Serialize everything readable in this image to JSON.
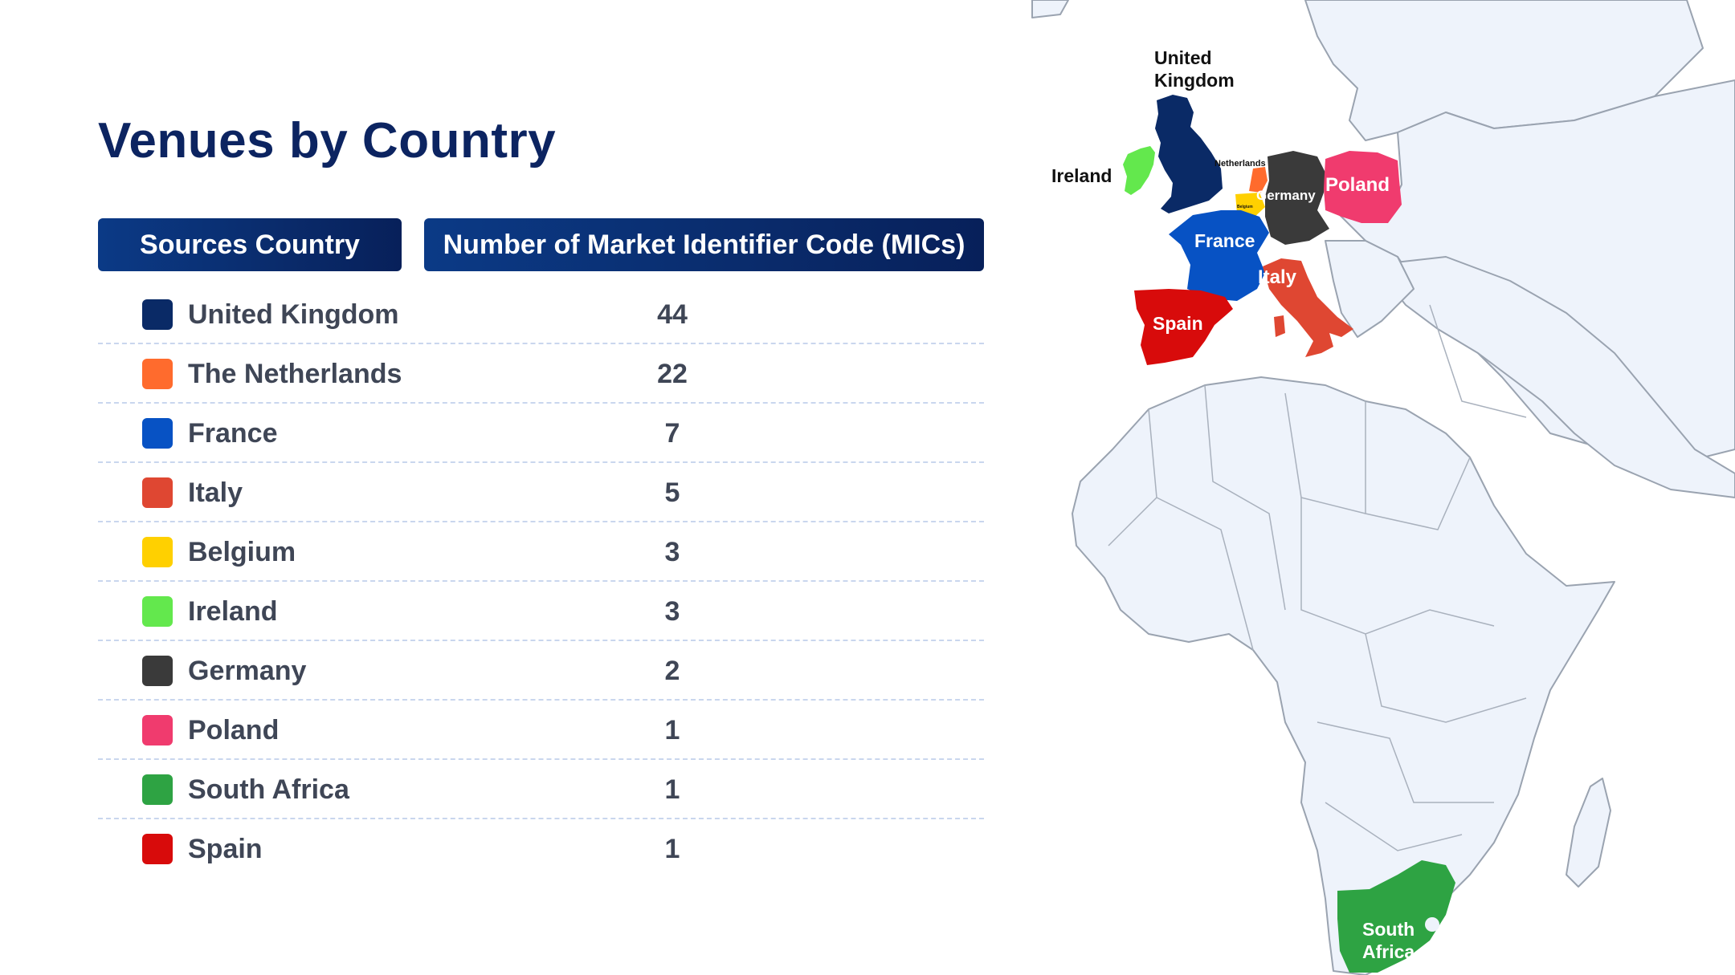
{
  "title": "Venues by Country",
  "table": {
    "headers": {
      "country": "Sources Country",
      "count": "Number of Market Identifier Code (MICs)"
    },
    "rows": [
      {
        "country": "United Kingdom",
        "count": "44",
        "color": "#0a2a66"
      },
      {
        "country": "The Netherlands",
        "count": "22",
        "color": "#ff6b2d"
      },
      {
        "country": "France",
        "count": "7",
        "color": "#0752c4"
      },
      {
        "country": "Italy",
        "count": "5",
        "color": "#df4732"
      },
      {
        "country": "Belgium",
        "count": "3",
        "color": "#ffd000"
      },
      {
        "country": "Ireland",
        "count": "3",
        "color": "#63e84d"
      },
      {
        "country": "Germany",
        "count": "2",
        "color": "#3a3a3a"
      },
      {
        "country": "Poland",
        "count": "1",
        "color": "#f03b6e"
      },
      {
        "country": "South Africa",
        "count": "1",
        "color": "#2ea343"
      },
      {
        "country": "Spain",
        "count": "1",
        "color": "#d80b0b"
      }
    ]
  },
  "map": {
    "labels": {
      "uk": "United Kingdom",
      "ireland": "Ireland",
      "netherlands": "Netherlands",
      "germany": "Germany",
      "poland": "Poland",
      "france": "France",
      "italy": "Italy",
      "spain": "Spain",
      "south_africa": "South Africa",
      "belgium": "Belgium"
    },
    "colors": {
      "land": "#eef3fb",
      "border": "#9aa3b0",
      "label_dark": "#111111",
      "label_light": "#ffffff"
    }
  }
}
